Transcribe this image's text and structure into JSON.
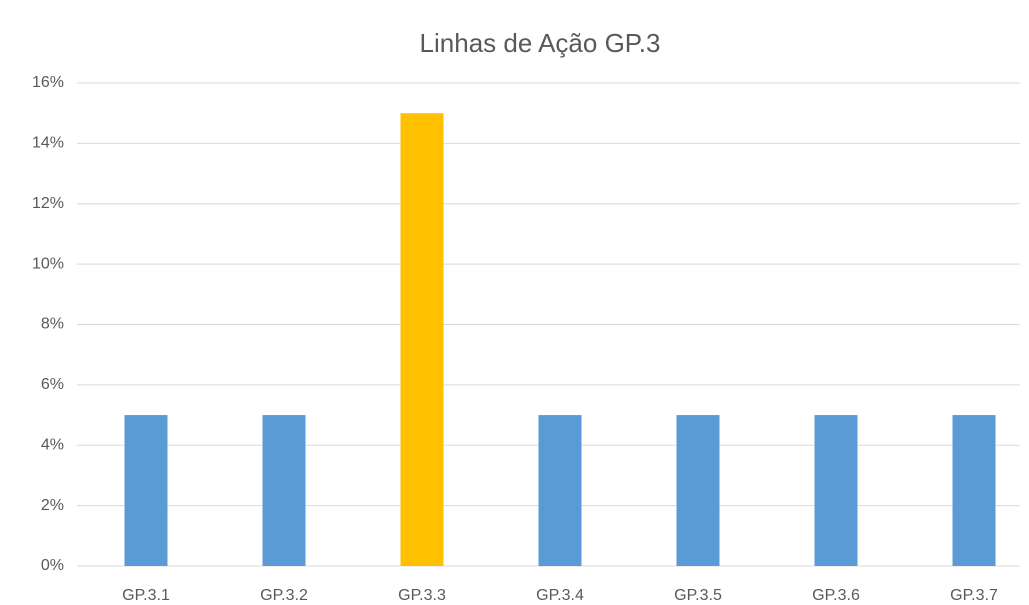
{
  "chart_data": {
    "type": "bar",
    "title": "Linhas de Ação GP.3",
    "categories": [
      "GP.3.1",
      "GP.3.2",
      "GP.3.3",
      "GP.3.4",
      "GP.3.5",
      "GP.3.6",
      "GP.3.7"
    ],
    "values": [
      5,
      5,
      15,
      5,
      5,
      5,
      5
    ],
    "colors": [
      "#5b9bd5",
      "#5b9bd5",
      "#ffc000",
      "#5b9bd5",
      "#5b9bd5",
      "#5b9bd5",
      "#5b9bd5"
    ],
    "ylim": [
      0,
      16
    ],
    "yticks": [
      {
        "value": 0,
        "label": "0%"
      },
      {
        "value": 2,
        "label": "2%"
      },
      {
        "value": 4,
        "label": "4%"
      },
      {
        "value": 6,
        "label": "6%"
      },
      {
        "value": 8,
        "label": "8%"
      },
      {
        "value": 10,
        "label": "10%"
      },
      {
        "value": 12,
        "label": "12%"
      },
      {
        "value": 14,
        "label": "14%"
      },
      {
        "value": 16,
        "label": "16%"
      }
    ],
    "grid": true
  }
}
